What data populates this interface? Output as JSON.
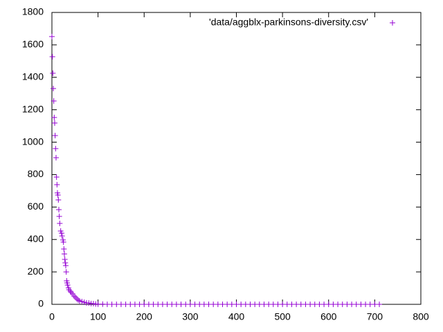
{
  "chart_data": {
    "type": "scatter",
    "xlim": [
      0,
      800
    ],
    "ylim": [
      0,
      1800
    ],
    "xticks": [
      0,
      100,
      200,
      300,
      400,
      500,
      600,
      700,
      800
    ],
    "yticks": [
      0,
      200,
      400,
      600,
      800,
      1000,
      1200,
      1400,
      1600,
      1800
    ],
    "legend": "top-right",
    "series": [
      {
        "name": "'data/aggblx-parkinsons-diversity.csv'",
        "color": "#9400d3",
        "x": [
          0,
          1,
          2,
          3,
          4,
          5,
          6,
          7,
          8,
          9,
          10,
          11,
          12,
          13,
          14,
          15,
          16,
          17,
          19,
          21,
          22,
          24,
          25,
          26,
          27,
          28,
          29,
          30,
          31,
          32,
          33,
          34,
          36,
          37,
          40,
          42,
          45,
          48,
          51,
          54,
          57,
          60,
          65,
          70,
          75,
          80,
          85,
          90,
          95,
          100,
          110,
          120,
          130,
          140,
          150,
          160,
          170,
          180,
          190,
          200,
          210,
          220,
          230,
          240,
          250,
          260,
          270,
          280,
          290,
          300,
          310,
          320,
          330,
          340,
          350,
          360,
          370,
          380,
          390,
          400,
          410,
          420,
          430,
          440,
          450,
          460,
          470,
          480,
          490,
          500,
          510,
          520,
          530,
          540,
          550,
          560,
          570,
          580,
          590,
          600,
          610,
          620,
          630,
          640,
          650,
          660,
          670,
          680,
          690,
          700,
          710
        ],
        "values": [
          1651,
          1527,
          1425,
          1331,
          1254,
          1152,
          1118,
          1041,
          960,
          904,
          785,
          738,
          687,
          674,
          644,
          584,
          542,
          499,
          452,
          439,
          422,
          397,
          384,
          341,
          311,
          277,
          256,
          239,
          200,
          145,
          132,
          119,
          102,
          90,
          81,
          73,
          64,
          51,
          43,
          34,
          26,
          21,
          17,
          13,
          9,
          8,
          5,
          4,
          2,
          1,
          1,
          0,
          0,
          0,
          0,
          0,
          0,
          0,
          0,
          0,
          0,
          0,
          0,
          0,
          0,
          0,
          0,
          0,
          0,
          0,
          0,
          0,
          0,
          0,
          0,
          0,
          0,
          0,
          0,
          0,
          0,
          0,
          0,
          0,
          0,
          0,
          0,
          0,
          0,
          0,
          0,
          0,
          0,
          0,
          0,
          0,
          0,
          0,
          0,
          0,
          0,
          0,
          0,
          0,
          0,
          0,
          0,
          0,
          0,
          0,
          0
        ]
      }
    ]
  }
}
